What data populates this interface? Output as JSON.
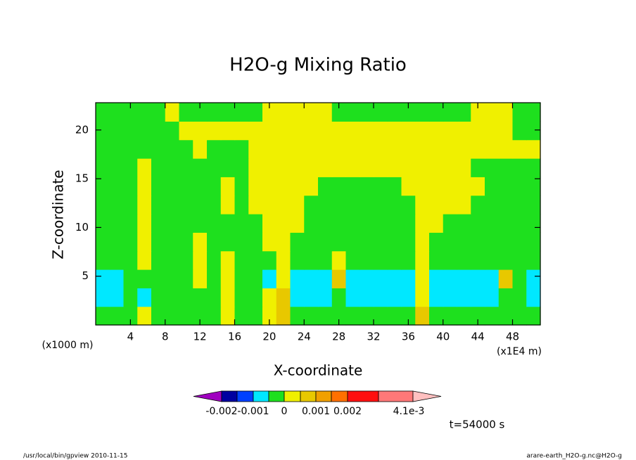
{
  "chart_data": {
    "type": "contour",
    "title": "H2O-g Mixing Ratio",
    "xlabel": "X-coordinate",
    "ylabel": "Z-coordinate",
    "x_unit_note": "(x1000 m)",
    "x_scale_note": "(x1E4 m)",
    "time_label": "t=54000 s",
    "footer_left": "/usr/local/bin/gpview  2010-11-15",
    "footer_right": "arare-earth_H2O-g.nc@H2O-g",
    "xlim": [
      0,
      51.2
    ],
    "ylim": [
      0,
      22.8
    ],
    "xticks": [
      4,
      8,
      12,
      16,
      20,
      24,
      28,
      32,
      36,
      40,
      44,
      48
    ],
    "yticks": [
      5,
      10,
      15,
      20
    ],
    "x": [
      0.8,
      2.4,
      4,
      5.6,
      7.2,
      8.8,
      10.4,
      12,
      13.6,
      15.2,
      16.8,
      18.4,
      20,
      21.6,
      23.2,
      24.8,
      26.4,
      28,
      29.6,
      31.2,
      32.8,
      34.4,
      36,
      37.6,
      39.2,
      40.8,
      42.4,
      44,
      45.6,
      47.2,
      48.8,
      50.4
    ],
    "y": [
      0.95,
      2.85,
      4.75,
      6.65,
      8.55,
      10.45,
      12.35,
      14.25,
      16.15,
      18.05,
      19.95,
      21.85
    ],
    "z": [
      [
        -0.0003,
        -0.0003,
        -0.0003,
        0.0003,
        -0.0003,
        -0.0003,
        -0.0003,
        -0.0003,
        -0.0003,
        0.0003,
        -0.0003,
        -0.0003,
        0.0003,
        0.0008,
        -0.0003,
        -0.0003,
        -0.0003,
        -0.0003,
        -0.0003,
        -0.0003,
        -0.0003,
        -0.0003,
        -0.0003,
        0.0008,
        -0.0003,
        -0.0003,
        -0.0003,
        -0.0003,
        -0.0003,
        -0.0003,
        -0.0003,
        -0.0003
      ],
      [
        -0.0007,
        -0.0007,
        -0.0003,
        -0.0007,
        -0.0003,
        -0.0003,
        -0.0003,
        -0.0003,
        -0.0003,
        0.0003,
        -0.0003,
        -0.0003,
        0.0003,
        0.0008,
        -0.0007,
        -0.0007,
        -0.0007,
        -0.0003,
        -0.0007,
        -0.0007,
        -0.0007,
        -0.0007,
        -0.0007,
        0.0003,
        -0.0007,
        -0.0007,
        -0.0007,
        -0.0007,
        -0.0007,
        -0.0003,
        -0.0003,
        -0.0007
      ],
      [
        -0.0007,
        -0.0007,
        -0.0003,
        -0.0003,
        -0.0003,
        -0.0003,
        -0.0003,
        0.0003,
        -0.0003,
        0.0003,
        -0.0003,
        -0.0003,
        -0.0007,
        0.0003,
        -0.0007,
        -0.0007,
        -0.0007,
        0.0008,
        -0.0007,
        -0.0007,
        -0.0007,
        -0.0007,
        -0.0007,
        0.0003,
        -0.0007,
        -0.0007,
        -0.0007,
        -0.0007,
        -0.0007,
        0.0008,
        -0.0003,
        -0.0007
      ],
      [
        -0.0003,
        -0.0003,
        -0.0003,
        0.0003,
        -0.0003,
        -0.0003,
        -0.0003,
        0.0003,
        -0.0003,
        0.0003,
        -0.0003,
        -0.0003,
        -0.0003,
        0.0003,
        -0.0003,
        -0.0003,
        -0.0003,
        0.0003,
        -0.0003,
        -0.0003,
        -0.0003,
        -0.0003,
        -0.0003,
        0.0003,
        -0.0003,
        -0.0003,
        -0.0003,
        -0.0003,
        -0.0003,
        -0.0003,
        -0.0003,
        -0.0003
      ],
      [
        -0.0003,
        -0.0003,
        -0.0003,
        0.0003,
        -0.0003,
        -0.0003,
        -0.0003,
        0.0003,
        -0.0003,
        -0.0003,
        -0.0003,
        -0.0003,
        0.0003,
        0.0003,
        -0.0003,
        -0.0003,
        -0.0003,
        -0.0003,
        -0.0003,
        -0.0003,
        -0.0003,
        -0.0003,
        -0.0003,
        0.0003,
        -0.0003,
        -0.0003,
        -0.0003,
        -0.0003,
        -0.0003,
        -0.0003,
        -0.0003,
        -0.0003
      ],
      [
        -0.0003,
        -0.0003,
        -0.0003,
        0.0003,
        -0.0003,
        -0.0003,
        -0.0003,
        -0.0003,
        -0.0003,
        -0.0003,
        -0.0003,
        -0.0003,
        0.0003,
        0.0003,
        0.0003,
        -0.0003,
        -0.0003,
        -0.0003,
        -0.0003,
        -0.0003,
        -0.0003,
        -0.0003,
        -0.0003,
        0.0003,
        0.0003,
        -0.0003,
        -0.0003,
        -0.0003,
        -0.0003,
        -0.0003,
        -0.0003,
        -0.0003
      ],
      [
        -0.0003,
        -0.0003,
        -0.0003,
        0.0003,
        -0.0003,
        -0.0003,
        -0.0003,
        -0.0003,
        -0.0003,
        0.0003,
        -0.0003,
        0.0003,
        0.0003,
        0.0003,
        0.0003,
        -0.0003,
        -0.0003,
        -0.0003,
        -0.0003,
        -0.0003,
        -0.0003,
        -0.0003,
        -0.0003,
        0.0003,
        0.0003,
        0.0003,
        0.0003,
        -0.0003,
        -0.0003,
        -0.0003,
        -0.0003,
        -0.0003
      ],
      [
        -0.0003,
        -0.0003,
        -0.0003,
        0.0003,
        -0.0003,
        -0.0003,
        -0.0003,
        -0.0003,
        -0.0003,
        0.0003,
        -0.0003,
        0.0003,
        0.0003,
        0.0003,
        0.0003,
        0.0003,
        -0.0003,
        -0.0003,
        -0.0003,
        -0.0003,
        -0.0003,
        -0.0003,
        0.0003,
        0.0003,
        0.0003,
        0.0003,
        0.0003,
        0.0003,
        -0.0003,
        -0.0003,
        -0.0003,
        -0.0003
      ],
      [
        -0.0003,
        -0.0003,
        -0.0003,
        0.0003,
        -0.0003,
        -0.0003,
        -0.0003,
        -0.0003,
        -0.0003,
        -0.0003,
        -0.0003,
        0.0003,
        0.0003,
        0.0003,
        0.0003,
        0.0003,
        0.0003,
        0.0003,
        0.0003,
        0.0003,
        0.0003,
        0.0003,
        0.0003,
        0.0003,
        0.0003,
        0.0003,
        0.0003,
        -0.0003,
        -0.0003,
        -0.0003,
        -0.0003,
        -0.0003
      ],
      [
        -0.0003,
        -0.0003,
        -0.0003,
        -0.0003,
        -0.0003,
        -0.0003,
        -0.0003,
        0.0003,
        -0.0003,
        -0.0003,
        -0.0003,
        0.0003,
        0.0003,
        0.0003,
        0.0003,
        0.0003,
        0.0003,
        0.0003,
        0.0003,
        0.0003,
        0.0003,
        0.0003,
        0.0003,
        0.0003,
        0.0003,
        0.0003,
        0.0003,
        0.0003,
        0.0003,
        0.0003,
        0.0003,
        0.0003
      ],
      [
        -0.0003,
        -0.0003,
        -0.0003,
        -0.0003,
        -0.0003,
        -0.0003,
        0.0003,
        0.0003,
        0.0003,
        0.0003,
        0.0003,
        0.0003,
        0.0003,
        0.0003,
        0.0003,
        0.0003,
        0.0003,
        0.0003,
        0.0003,
        0.0003,
        0.0003,
        0.0003,
        0.0003,
        0.0003,
        0.0003,
        0.0003,
        0.0003,
        0.0003,
        0.0003,
        0.0003,
        -0.0003,
        -0.0003
      ],
      [
        -0.0003,
        -0.0003,
        -0.0003,
        -0.0003,
        -0.0003,
        0.0003,
        -0.0003,
        -0.0003,
        -0.0003,
        -0.0003,
        -0.0003,
        -0.0003,
        0.0003,
        0.0003,
        0.0003,
        0.0003,
        0.0003,
        -0.0003,
        -0.0003,
        -0.0003,
        -0.0003,
        -0.0003,
        -0.0003,
        -0.0003,
        -0.0003,
        -0.0003,
        -0.0003,
        0.0003,
        0.0003,
        0.0003,
        -0.0003,
        -0.0003
      ]
    ],
    "colorbar": {
      "levels": [
        -0.002,
        -0.0015,
        -0.001,
        -0.0005,
        0,
        0.0005,
        0.001,
        0.0015,
        0.002,
        0.003,
        0.0041
      ],
      "colors": [
        "#a000c0",
        "#0000a0",
        "#0040ff",
        "#00e8ff",
        "#1ee01e",
        "#f0f000",
        "#e8c800",
        "#f0a000",
        "#ff7000",
        "#ff1010",
        "#ff7878",
        "#ffc0c0"
      ],
      "ticks": [
        {
          "value": -0.002,
          "label": "-0.002"
        },
        {
          "value": -0.001,
          "label": "-0.001"
        },
        0,
        {
          "value": 0.001,
          "label": "0.001"
        },
        {
          "value": 0.002,
          "label": "0.002"
        },
        {
          "value": 0.0041,
          "label": "4.1e-3"
        }
      ]
    }
  }
}
